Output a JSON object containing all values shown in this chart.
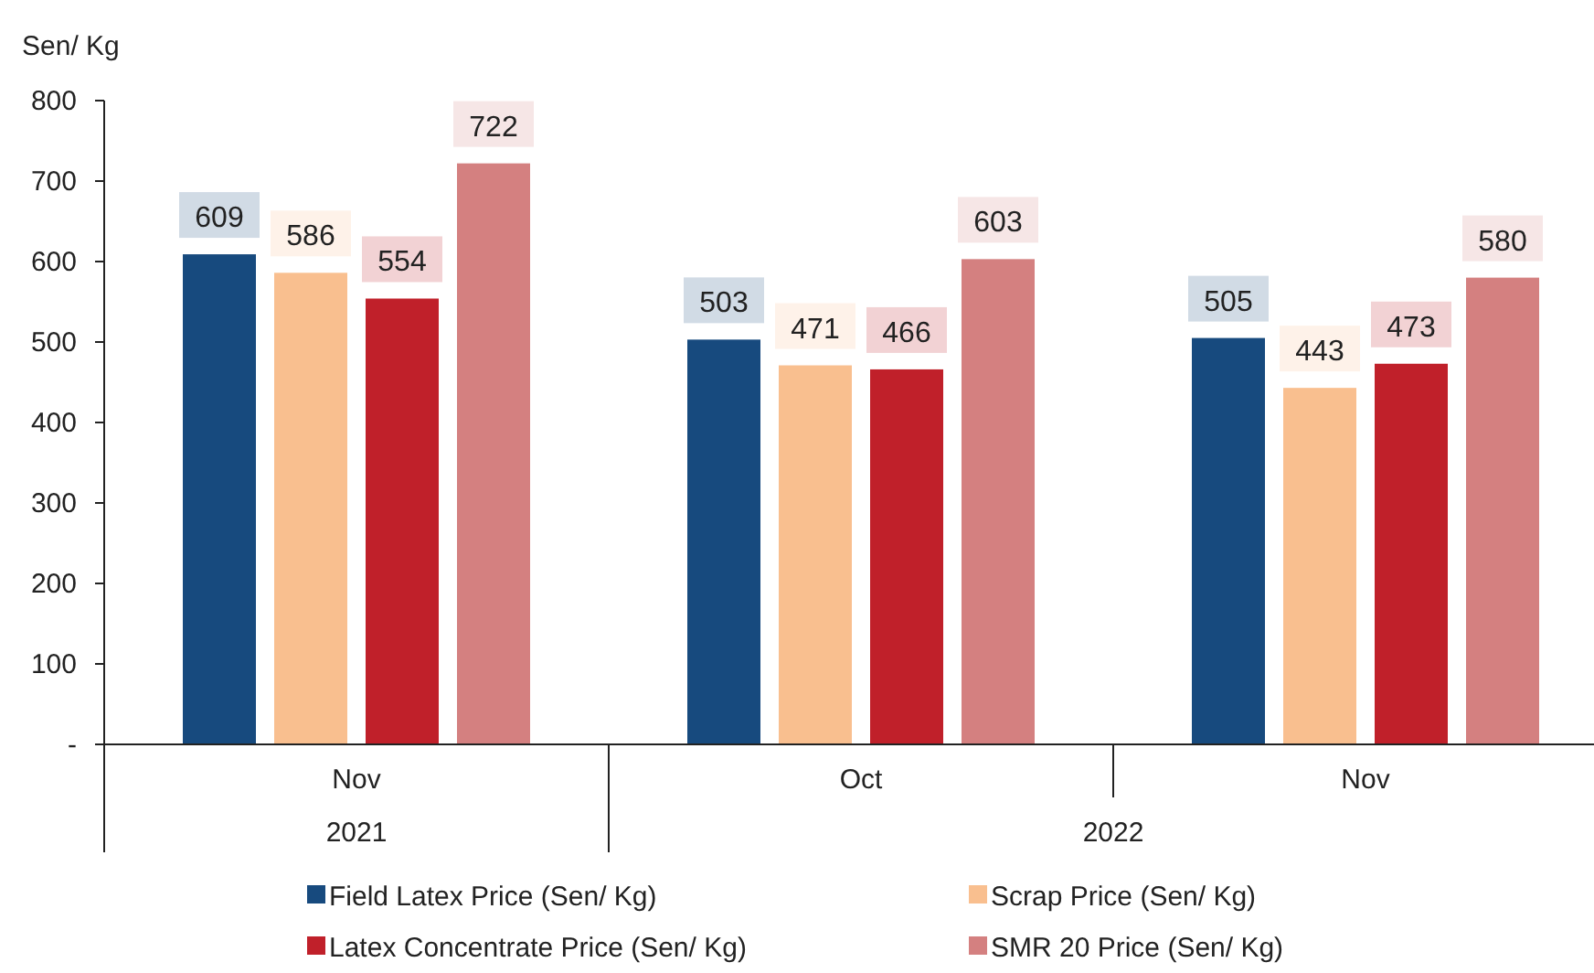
{
  "chart_data": {
    "type": "bar",
    "ylabel": "Sen/ Kg",
    "categories": [
      "Nov",
      "Oct",
      "Nov"
    ],
    "annotations": [
      "2021",
      "2022"
    ],
    "series": [
      {
        "name": "Field Latex Price  (Sen/ Kg)",
        "color": "#174a7e",
        "values": [
          609,
          503,
          505
        ]
      },
      {
        "name": "Scrap Price (Sen/ Kg)",
        "color": "#f9bf8f",
        "values": [
          586,
          471,
          443
        ]
      },
      {
        "name": "Latex Concentrate Price (Sen/ Kg)",
        "color": "#c0202a",
        "values": [
          554,
          466,
          473
        ]
      },
      {
        "name": "SMR 20 Price (Sen/ Kg)",
        "color": "#d48080",
        "values": [
          722,
          603,
          580
        ]
      }
    ],
    "ylim": [
      0,
      800
    ],
    "yticks": [
      {
        "value": 0,
        "label": "-"
      },
      100,
      200,
      300,
      400,
      500,
      600,
      700,
      800
    ],
    "data_labels": true,
    "grid": false,
    "legend": "bottom"
  }
}
